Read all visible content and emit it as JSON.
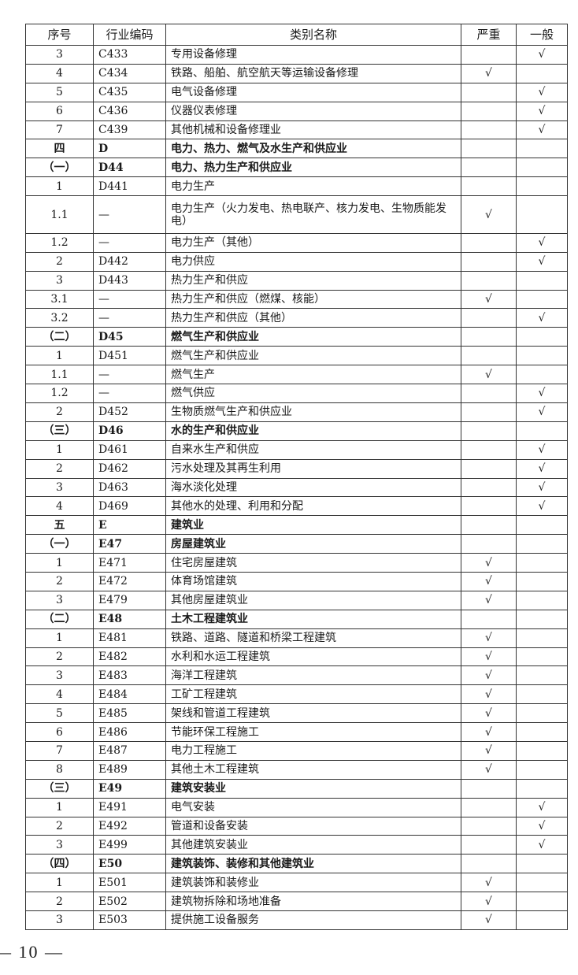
{
  "table": {
    "headers": [
      "序号",
      "行业编码",
      "类别名称",
      "严重",
      "一般"
    ],
    "check_mark": "√",
    "rows": [
      {
        "seq": "3",
        "code": "C433",
        "name": "专用设备修理",
        "severe": false,
        "general": true,
        "bold": false
      },
      {
        "seq": "4",
        "code": "C434",
        "name": "铁路、船舶、航空航天等运输设备修理",
        "severe": true,
        "general": false,
        "bold": false
      },
      {
        "seq": "5",
        "code": "C435",
        "name": "电气设备修理",
        "severe": false,
        "general": true,
        "bold": false
      },
      {
        "seq": "6",
        "code": "C436",
        "name": "仪器仪表修理",
        "severe": false,
        "general": true,
        "bold": false
      },
      {
        "seq": "7",
        "code": "C439",
        "name": "其他机械和设备修理业",
        "severe": false,
        "general": true,
        "bold": false
      },
      {
        "seq": "四",
        "code": "D",
        "name": "电力、热力、燃气及水生产和供应业",
        "severe": false,
        "general": false,
        "bold": true
      },
      {
        "seq": "（一）",
        "code": "D44",
        "name": "电力、热力生产和供应业",
        "severe": false,
        "general": false,
        "bold": true
      },
      {
        "seq": "1",
        "code": "D441",
        "name": "电力生产",
        "severe": false,
        "general": false,
        "bold": false
      },
      {
        "seq": "1.1",
        "code": "—",
        "name": "电力生产（火力发电、热电联产、核力发电、生物质能发电）",
        "severe": true,
        "general": false,
        "bold": false,
        "tall": true
      },
      {
        "seq": "1.2",
        "code": "—",
        "name": "电力生产（其他）",
        "severe": false,
        "general": true,
        "bold": false
      },
      {
        "seq": "2",
        "code": "D442",
        "name": "电力供应",
        "severe": false,
        "general": true,
        "bold": false
      },
      {
        "seq": "3",
        "code": "D443",
        "name": "热力生产和供应",
        "severe": false,
        "general": false,
        "bold": false
      },
      {
        "seq": "3.1",
        "code": "—",
        "name": "热力生产和供应（燃煤、核能）",
        "severe": true,
        "general": false,
        "bold": false
      },
      {
        "seq": "3.2",
        "code": "—",
        "name": "热力生产和供应（其他）",
        "severe": false,
        "general": true,
        "bold": false
      },
      {
        "seq": "（二）",
        "code": "D45",
        "name": "燃气生产和供应业",
        "severe": false,
        "general": false,
        "bold": true
      },
      {
        "seq": "1",
        "code": "D451",
        "name": "燃气生产和供应业",
        "severe": false,
        "general": false,
        "bold": false
      },
      {
        "seq": "1.1",
        "code": "—",
        "name": "燃气生产",
        "severe": true,
        "general": false,
        "bold": false
      },
      {
        "seq": "1.2",
        "code": "—",
        "name": "燃气供应",
        "severe": false,
        "general": true,
        "bold": false
      },
      {
        "seq": "2",
        "code": "D452",
        "name": "生物质燃气生产和供应业",
        "severe": false,
        "general": true,
        "bold": false
      },
      {
        "seq": "（三）",
        "code": "D46",
        "name": "水的生产和供应业",
        "severe": false,
        "general": false,
        "bold": true
      },
      {
        "seq": "1",
        "code": "D461",
        "name": "自来水生产和供应",
        "severe": false,
        "general": true,
        "bold": false
      },
      {
        "seq": "2",
        "code": "D462",
        "name": "污水处理及其再生利用",
        "severe": false,
        "general": true,
        "bold": false
      },
      {
        "seq": "3",
        "code": "D463",
        "name": "海水淡化处理",
        "severe": false,
        "general": true,
        "bold": false
      },
      {
        "seq": "4",
        "code": "D469",
        "name": "其他水的处理、利用和分配",
        "severe": false,
        "general": true,
        "bold": false
      },
      {
        "seq": "五",
        "code": "E",
        "name": "建筑业",
        "severe": false,
        "general": false,
        "bold": true
      },
      {
        "seq": "（一）",
        "code": "E47",
        "name": "房屋建筑业",
        "severe": false,
        "general": false,
        "bold": true
      },
      {
        "seq": "1",
        "code": "E471",
        "name": "住宅房屋建筑",
        "severe": true,
        "general": false,
        "bold": false
      },
      {
        "seq": "2",
        "code": "E472",
        "name": "体育场馆建筑",
        "severe": true,
        "general": false,
        "bold": false
      },
      {
        "seq": "3",
        "code": "E479",
        "name": "其他房屋建筑业",
        "severe": true,
        "general": false,
        "bold": false
      },
      {
        "seq": "（二）",
        "code": "E48",
        "name": "土木工程建筑业",
        "severe": false,
        "general": false,
        "bold": true
      },
      {
        "seq": "1",
        "code": "E481",
        "name": "铁路、道路、隧道和桥梁工程建筑",
        "severe": true,
        "general": false,
        "bold": false
      },
      {
        "seq": "2",
        "code": "E482",
        "name": "水利和水运工程建筑",
        "severe": true,
        "general": false,
        "bold": false
      },
      {
        "seq": "3",
        "code": "E483",
        "name": "海洋工程建筑",
        "severe": true,
        "general": false,
        "bold": false
      },
      {
        "seq": "4",
        "code": "E484",
        "name": "工矿工程建筑",
        "severe": true,
        "general": false,
        "bold": false
      },
      {
        "seq": "5",
        "code": "E485",
        "name": "架线和管道工程建筑",
        "severe": true,
        "general": false,
        "bold": false
      },
      {
        "seq": "6",
        "code": "E486",
        "name": "节能环保工程施工",
        "severe": true,
        "general": false,
        "bold": false
      },
      {
        "seq": "7",
        "code": "E487",
        "name": "电力工程施工",
        "severe": true,
        "general": false,
        "bold": false
      },
      {
        "seq": "8",
        "code": "E489",
        "name": "其他土木工程建筑",
        "severe": true,
        "general": false,
        "bold": false
      },
      {
        "seq": "（三）",
        "code": "E49",
        "name": "建筑安装业",
        "severe": false,
        "general": false,
        "bold": true
      },
      {
        "seq": "1",
        "code": "E491",
        "name": "电气安装",
        "severe": false,
        "general": true,
        "bold": false
      },
      {
        "seq": "2",
        "code": "E492",
        "name": "管道和设备安装",
        "severe": false,
        "general": true,
        "bold": false
      },
      {
        "seq": "3",
        "code": "E499",
        "name": "其他建筑安装业",
        "severe": false,
        "general": true,
        "bold": false
      },
      {
        "seq": "（四）",
        "code": "E50",
        "name": "建筑装饰、装修和其他建筑业",
        "severe": false,
        "general": false,
        "bold": true
      },
      {
        "seq": "1",
        "code": "E501",
        "name": "建筑装饰和装修业",
        "severe": true,
        "general": false,
        "bold": false
      },
      {
        "seq": "2",
        "code": "E502",
        "name": "建筑物拆除和场地准备",
        "severe": true,
        "general": false,
        "bold": false
      },
      {
        "seq": "3",
        "code": "E503",
        "name": "提供施工设备服务",
        "severe": true,
        "general": false,
        "bold": false
      }
    ]
  },
  "footer": {
    "page_number": "— 10 —"
  }
}
